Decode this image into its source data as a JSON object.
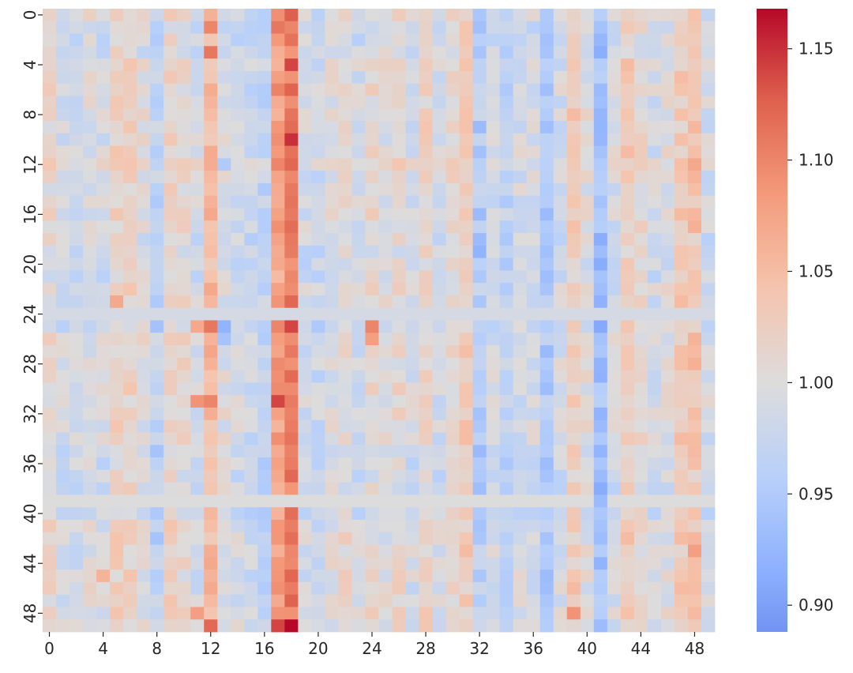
{
  "chart_data": {
    "type": "heatmap",
    "title": "",
    "xlabel": "",
    "ylabel": "",
    "n_rows": 50,
    "n_cols": 50,
    "x_ticks": [
      "0",
      "4",
      "8",
      "12",
      "16",
      "20",
      "24",
      "28",
      "32",
      "36",
      "40",
      "44",
      "48"
    ],
    "y_ticks": [
      "0",
      "4",
      "8",
      "12",
      "16",
      "20",
      "24",
      "28",
      "32",
      "36",
      "40",
      "44",
      "48"
    ],
    "colormap": "coolwarm",
    "colorbar": {
      "vmin": 0.888,
      "vmax": 1.168,
      "ticks": [
        "0.90",
        "0.95",
        "1.00",
        "1.05",
        "1.10",
        "1.15"
      ],
      "tick_values": [
        0.9,
        0.95,
        1.0,
        1.05,
        1.1,
        1.15
      ]
    },
    "row_baseline": [
      1.0,
      0.99,
      0.99,
      0.99,
      1.0,
      1.0,
      1.0,
      1.0,
      1.0,
      1.0,
      1.0,
      1.0,
      1.01,
      1.0,
      1.0,
      1.0,
      1.0,
      1.0,
      0.99,
      0.99,
      0.99,
      0.99,
      1.0,
      1.0,
      0.99,
      0.99,
      1.0,
      1.0,
      1.0,
      1.0,
      1.0,
      1.0,
      1.0,
      1.0,
      1.0,
      0.99,
      0.99,
      0.99,
      0.99,
      1.0,
      0.99,
      1.0,
      1.0,
      1.0,
      1.0,
      1.0,
      1.0,
      1.0,
      1.0,
      1.0
    ],
    "column_means": [
      1.01,
      0.99,
      0.99,
      1.0,
      0.99,
      1.02,
      1.02,
      1.0,
      0.97,
      1.02,
      1.01,
      0.99,
      1.05,
      1.0,
      0.99,
      0.98,
      0.97,
      1.08,
      1.11,
      0.99,
      0.98,
      1.0,
      1.01,
      0.99,
      1.01,
      1.0,
      1.01,
      0.99,
      1.02,
      0.99,
      1.01,
      1.03,
      0.96,
      0.99,
      0.97,
      0.99,
      0.99,
      0.95,
      0.99,
      1.03,
      1.0,
      0.94,
      0.99,
      1.03,
      1.01,
      0.99,
      1.0,
      1.03,
      1.04,
      0.99
    ],
    "row_24_values": [
      0.99,
      0.99,
      0.99,
      0.99,
      0.99,
      0.99,
      0.99,
      0.99,
      0.99,
      0.99,
      0.99,
      0.99,
      0.99,
      0.99,
      0.99,
      0.99,
      0.99,
      0.99,
      0.99,
      0.99,
      0.99,
      0.99,
      0.99,
      0.99,
      0.99,
      0.99,
      0.99,
      0.99,
      0.99,
      0.99,
      0.99,
      0.99,
      0.99,
      0.99,
      0.99,
      0.99,
      0.99,
      0.99,
      0.99,
      0.99,
      0.99,
      0.99,
      0.99,
      0.99,
      0.99,
      0.99,
      0.99,
      0.99,
      0.99,
      0.99
    ],
    "row_39_values": [
      1.0,
      1.0,
      1.0,
      1.0,
      1.0,
      1.0,
      1.0,
      1.0,
      1.0,
      1.0,
      1.0,
      1.0,
      1.0,
      1.0,
      1.0,
      1.0,
      1.0,
      1.0,
      1.0,
      1.0,
      1.0,
      1.0,
      1.0,
      1.0,
      1.0,
      1.0,
      1.0,
      1.0,
      1.0,
      1.0,
      1.0,
      1.0,
      1.0,
      1.0,
      1.0,
      1.0,
      1.0,
      1.0,
      1.0,
      1.0,
      1.0,
      1.0,
      1.0,
      1.0,
      1.0,
      1.0,
      1.0,
      1.0,
      1.0,
      1.0
    ],
    "cell_overrides": [
      {
        "row": 49,
        "col": 18,
        "value": 1.168
      },
      {
        "row": 49,
        "col": 17,
        "value": 1.14
      },
      {
        "row": 49,
        "col": 12,
        "value": 1.12
      },
      {
        "row": 48,
        "col": 11,
        "value": 1.08
      },
      {
        "row": 48,
        "col": 17,
        "value": 1.09
      },
      {
        "row": 48,
        "col": 39,
        "value": 1.09
      },
      {
        "row": 25,
        "col": 18,
        "value": 1.14
      },
      {
        "row": 25,
        "col": 17,
        "value": 1.1
      },
      {
        "row": 25,
        "col": 12,
        "value": 1.11
      },
      {
        "row": 25,
        "col": 11,
        "value": 1.07
      },
      {
        "row": 25,
        "col": 13,
        "value": 0.92
      },
      {
        "row": 25,
        "col": 24,
        "value": 1.1
      },
      {
        "row": 26,
        "col": 13,
        "value": 0.94
      },
      {
        "row": 26,
        "col": 24,
        "value": 1.08
      },
      {
        "row": 31,
        "col": 17,
        "value": 1.14
      },
      {
        "row": 31,
        "col": 12,
        "value": 1.1
      },
      {
        "row": 31,
        "col": 11,
        "value": 1.09
      },
      {
        "row": 10,
        "col": 18,
        "value": 1.15
      },
      {
        "row": 4,
        "col": 18,
        "value": 1.14
      },
      {
        "row": 3,
        "col": 12,
        "value": 1.11
      },
      {
        "row": 1,
        "col": 12,
        "value": 1.1
      },
      {
        "row": 1,
        "col": 17,
        "value": 1.11
      },
      {
        "row": 1,
        "col": 18,
        "value": 1.1
      },
      {
        "row": 12,
        "col": 13,
        "value": 0.95
      },
      {
        "row": 6,
        "col": 41,
        "value": 0.93
      },
      {
        "row": 28,
        "col": 41,
        "value": 0.92
      },
      {
        "row": 33,
        "col": 41,
        "value": 0.93
      },
      {
        "row": 39,
        "col": 41,
        "value": 0.93
      },
      {
        "row": 42,
        "col": 8,
        "value": 0.94
      },
      {
        "row": 42,
        "col": 37,
        "value": 0.94
      },
      {
        "row": 43,
        "col": 48,
        "value": 1.08
      },
      {
        "row": 45,
        "col": 4,
        "value": 1.06
      },
      {
        "row": 23,
        "col": 5,
        "value": 1.07
      },
      {
        "row": 16,
        "col": 32,
        "value": 0.93
      },
      {
        "row": 19,
        "col": 32,
        "value": 0.92
      },
      {
        "row": 9,
        "col": 32,
        "value": 0.93
      }
    ]
  }
}
